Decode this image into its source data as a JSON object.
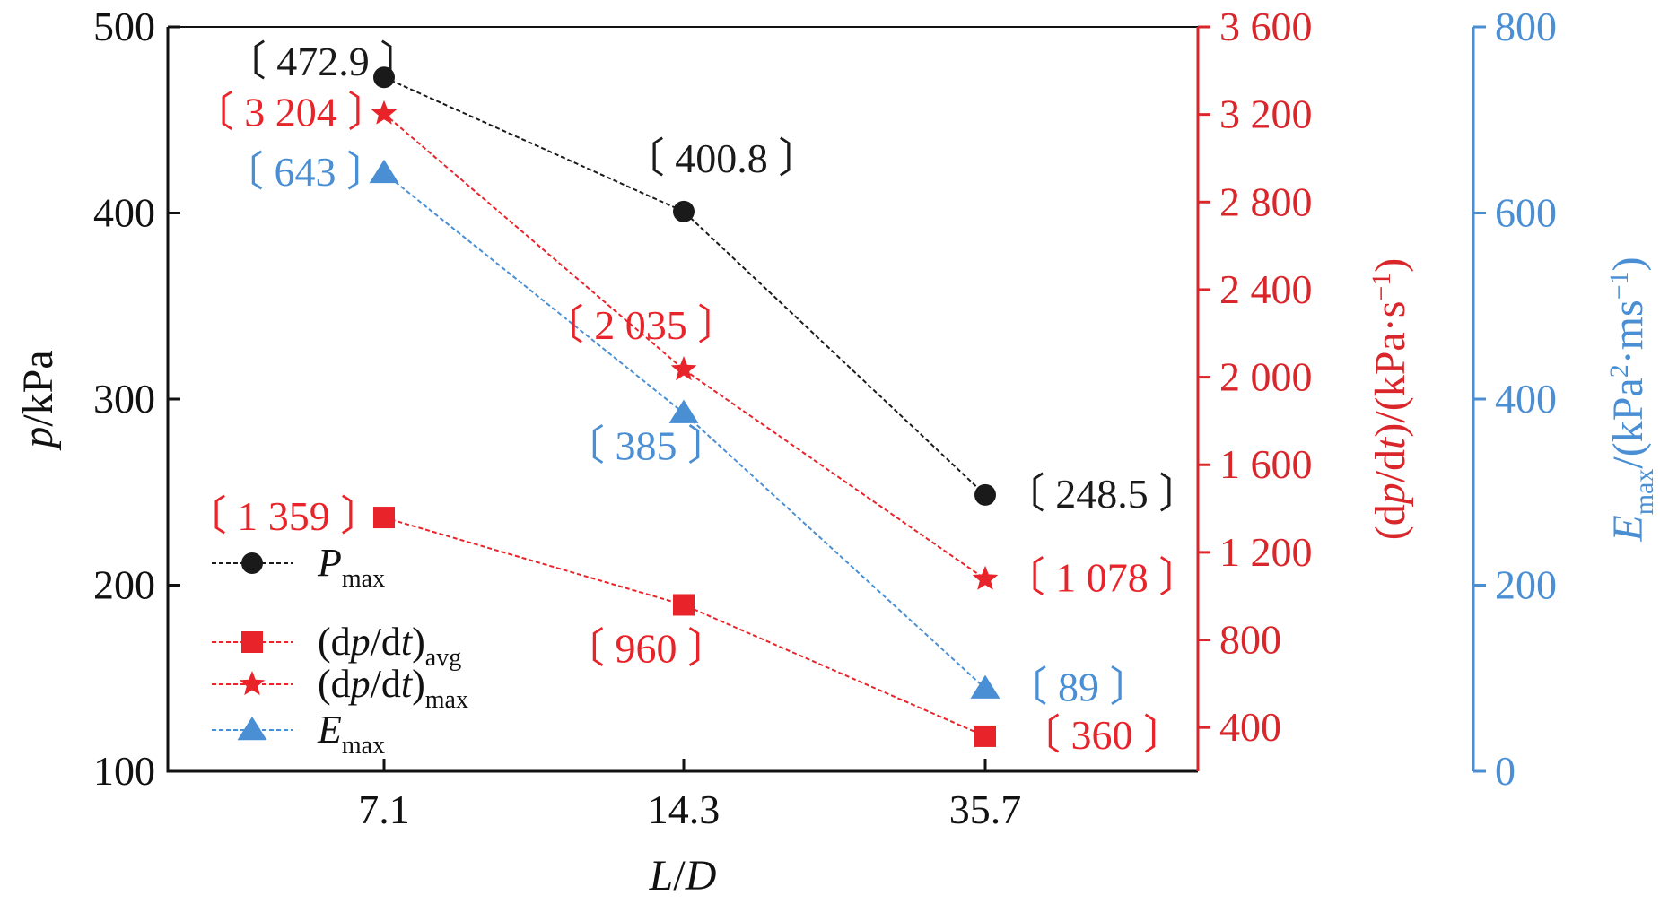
{
  "colors": {
    "black": "#1a1a1a",
    "red": "#e8242a",
    "blue": "#4a8fd4",
    "axis_red": "#d9262b",
    "axis_blue": "#4a8fd4"
  },
  "chart_data": {
    "type": "line",
    "categories": [
      "7.1",
      "14.3",
      "35.7"
    ],
    "xlabel": "L/D",
    "grid": false,
    "legend_position": "bottom-left",
    "axes": {
      "left": {
        "label": "p/kPa",
        "ylim": [
          100,
          500
        ],
        "ticks": [
          100,
          200,
          300,
          400,
          500
        ],
        "tick_labels": [
          "100",
          "200",
          "300",
          "400",
          "500"
        ]
      },
      "right_red": {
        "label": "(dp/dt)/(kPa·s⁻¹)",
        "ylim": [
          200,
          3600
        ],
        "ticks": [
          400,
          800,
          1200,
          1600,
          2000,
          2400,
          2800,
          3200,
          3600
        ],
        "tick_labels": [
          "400",
          "800",
          "1 200",
          "1 600",
          "2 000",
          "2 400",
          "2 800",
          "3 200",
          "3 600"
        ]
      },
      "right_blue": {
        "label": "Emax/(kPa²·ms⁻¹)",
        "ylim": [
          0,
          800
        ],
        "ticks": [
          0,
          200,
          400,
          600,
          800
        ],
        "tick_labels": [
          "0",
          "200",
          "400",
          "600",
          "800"
        ]
      }
    },
    "series": [
      {
        "name": "Pmax",
        "legend_main": "P",
        "legend_sub": "max",
        "axis": "left",
        "color_key": "black",
        "marker": "circle",
        "values": [
          472.9,
          400.8,
          248.5
        ],
        "labels": [
          "〔 472.9 〕",
          "〔 400.8 〕",
          "〔 248.5 〕"
        ]
      },
      {
        "name": "(dp/dt)avg",
        "legend_main": "(dp/dt)",
        "legend_sub": "avg",
        "axis": "right_red",
        "color_key": "red",
        "marker": "square",
        "values": [
          1359,
          960,
          360
        ],
        "labels": [
          "〔 1 359 〕",
          "〔 960 〕",
          "〔 360 〕"
        ]
      },
      {
        "name": "(dp/dt)max",
        "legend_main": "(dp/dt)",
        "legend_sub": "max",
        "axis": "right_red",
        "color_key": "red",
        "marker": "star",
        "values": [
          3204,
          2035,
          1078
        ],
        "labels": [
          "〔 3 204 〕",
          "〔 2 035 〕",
          "〔 1 078 〕"
        ]
      },
      {
        "name": "Emax",
        "legend_main": "E",
        "legend_sub": "max",
        "axis": "right_blue",
        "color_key": "blue",
        "marker": "triangle",
        "values": [
          643,
          385,
          89
        ],
        "labels": [
          "〔 643 〕",
          "〔 385 〕",
          "〔 89 〕"
        ]
      }
    ]
  }
}
